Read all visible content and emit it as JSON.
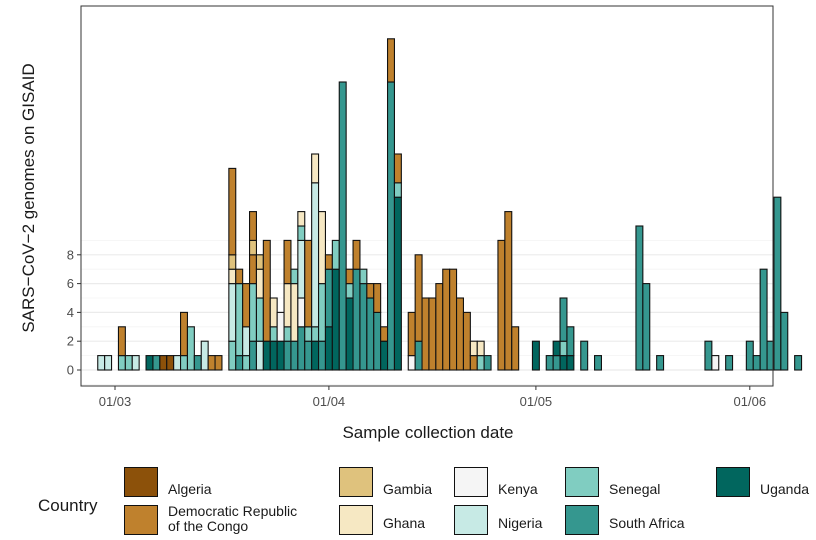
{
  "chart_data": {
    "type": "bar",
    "stacked": true,
    "xlabel": "Sample collection date",
    "ylabel": "SARS−CoV−2 genomes on GISAID",
    "xticks": [
      "01/03",
      "01/04",
      "01/05",
      "01/06"
    ],
    "yticks": [
      0,
      2,
      4,
      6,
      8
    ],
    "ylim": [
      0,
      24
    ],
    "grid": true,
    "legend_title": "Country",
    "legend_position": "bottom",
    "series": [
      {
        "name": "Algeria",
        "color": "#8c510a"
      },
      {
        "name": "Democratic Republic of the Congo",
        "color": "#bf812d"
      },
      {
        "name": "Gambia",
        "color": "#dfc27d"
      },
      {
        "name": "Ghana",
        "color": "#f6e8c3"
      },
      {
        "name": "Kenya",
        "color": "#f5f5f5"
      },
      {
        "name": "Nigeria",
        "color": "#c7eae5"
      },
      {
        "name": "Senegal",
        "color": "#80cdc1"
      },
      {
        "name": "South Africa",
        "color": "#35978f"
      },
      {
        "name": "Uganda",
        "color": "#01665e"
      }
    ],
    "bars": [
      {
        "date": "2020-02-28",
        "stack": [
          [
            "Nigeria",
            1
          ]
        ]
      },
      {
        "date": "2020-02-29",
        "stack": [
          [
            "Nigeria",
            1
          ]
        ]
      },
      {
        "date": "2020-03-02",
        "stack": [
          [
            "Senegal",
            1
          ],
          [
            "Democratic Republic of the Congo",
            2
          ]
        ]
      },
      {
        "date": "2020-03-03",
        "stack": [
          [
            "Senegal",
            1
          ]
        ]
      },
      {
        "date": "2020-03-04",
        "stack": [
          [
            "Nigeria",
            1
          ]
        ]
      },
      {
        "date": "2020-03-06",
        "stack": [
          [
            "Uganda",
            1
          ]
        ]
      },
      {
        "date": "2020-03-07",
        "stack": [
          [
            "South Africa",
            1
          ]
        ]
      },
      {
        "date": "2020-03-08",
        "stack": [
          [
            "Algeria",
            1
          ]
        ]
      },
      {
        "date": "2020-03-09",
        "stack": [
          [
            "Algeria",
            1
          ]
        ]
      },
      {
        "date": "2020-03-10",
        "stack": [
          [
            "Nigeria",
            1
          ]
        ]
      },
      {
        "date": "2020-03-11",
        "stack": [
          [
            "Senegal",
            1
          ],
          [
            "Democratic Republic of the Congo",
            3
          ]
        ]
      },
      {
        "date": "2020-03-12",
        "stack": [
          [
            "Senegal",
            3
          ]
        ]
      },
      {
        "date": "2020-03-13",
        "stack": [
          [
            "South Africa",
            1
          ]
        ]
      },
      {
        "date": "2020-03-14",
        "stack": [
          [
            "Nigeria",
            2
          ]
        ]
      },
      {
        "date": "2020-03-15",
        "stack": [
          [
            "Democratic Republic of the Congo",
            1
          ]
        ]
      },
      {
        "date": "2020-03-16",
        "stack": [
          [
            "Democratic Republic of the Congo",
            1
          ]
        ]
      },
      {
        "date": "2020-03-18",
        "stack": [
          [
            "Senegal",
            2
          ],
          [
            "Nigeria",
            4
          ],
          [
            "Ghana",
            1
          ],
          [
            "Gambia",
            1
          ],
          [
            "Democratic Republic of the Congo",
            6
          ]
        ]
      },
      {
        "date": "2020-03-19",
        "stack": [
          [
            "South Africa",
            1
          ],
          [
            "Senegal",
            5
          ],
          [
            "Democratic Republic of the Congo",
            1
          ]
        ]
      },
      {
        "date": "2020-03-20",
        "stack": [
          [
            "Senegal",
            1
          ],
          [
            "Nigeria",
            2
          ],
          [
            "Democratic Republic of the Congo",
            3
          ]
        ]
      },
      {
        "date": "2020-03-21",
        "stack": [
          [
            "South Africa",
            2
          ],
          [
            "Senegal",
            4
          ],
          [
            "Democratic Republic of the Congo",
            2
          ],
          [
            "Gambia",
            1
          ],
          [
            "Democratic Republic of the Congo",
            2
          ]
        ]
      },
      {
        "date": "2020-03-22",
        "stack": [
          [
            "Nigeria",
            2
          ],
          [
            "Senegal",
            3
          ],
          [
            "Ghana",
            2
          ],
          [
            "Gambia",
            1
          ]
        ]
      },
      {
        "date": "2020-03-23",
        "stack": [
          [
            "Uganda",
            2
          ],
          [
            "Democratic Republic of the Congo",
            7
          ]
        ]
      },
      {
        "date": "2020-03-24",
        "stack": [
          [
            "Uganda",
            2
          ],
          [
            "Senegal",
            1
          ],
          [
            "Ghana",
            2
          ]
        ]
      },
      {
        "date": "2020-03-25",
        "stack": [
          [
            "Uganda",
            2
          ],
          [
            "Kenya",
            2
          ]
        ]
      },
      {
        "date": "2020-03-26",
        "stack": [
          [
            "South Africa",
            2
          ],
          [
            "Senegal",
            1
          ],
          [
            "Ghana",
            3
          ],
          [
            "Democratic Republic of the Congo",
            3
          ]
        ]
      },
      {
        "date": "2020-03-27",
        "stack": [
          [
            "South Africa",
            2
          ],
          [
            "Ghana",
            4
          ],
          [
            "Senegal",
            1
          ]
        ]
      },
      {
        "date": "2020-03-28",
        "stack": [
          [
            "South Africa",
            3
          ],
          [
            "Kenya",
            2
          ],
          [
            "Nigeria",
            4
          ],
          [
            "Senegal",
            1
          ],
          [
            "Ghana",
            1
          ]
        ]
      },
      {
        "date": "2020-03-29",
        "stack": [
          [
            "South Africa",
            2
          ],
          [
            "Senegal",
            1
          ],
          [
            "Democratic Republic of the Congo",
            6
          ]
        ]
      },
      {
        "date": "2020-03-30",
        "stack": [
          [
            "Uganda",
            2
          ],
          [
            "Senegal",
            1
          ],
          [
            "Nigeria",
            10
          ],
          [
            "Ghana",
            2
          ]
        ]
      },
      {
        "date": "2020-03-31",
        "stack": [
          [
            "South Africa",
            2
          ],
          [
            "Senegal",
            4
          ],
          [
            "Ghana",
            5
          ]
        ]
      },
      {
        "date": "2020-04-01",
        "stack": [
          [
            "Uganda",
            3
          ],
          [
            "South Africa",
            4
          ],
          [
            "Democratic Republic of the Congo",
            1
          ]
        ]
      },
      {
        "date": "2020-04-02",
        "stack": [
          [
            "Uganda",
            7
          ],
          [
            "Senegal",
            2
          ]
        ]
      },
      {
        "date": "2020-04-03",
        "stack": [
          [
            "South Africa",
            20
          ]
        ]
      },
      {
        "date": "2020-04-04",
        "stack": [
          [
            "Uganda",
            5
          ],
          [
            "Senegal",
            1
          ],
          [
            "Democratic Republic of the Congo",
            1
          ]
        ]
      },
      {
        "date": "2020-04-05",
        "stack": [
          [
            "South Africa",
            7
          ],
          [
            "Democratic Republic of the Congo",
            2
          ]
        ]
      },
      {
        "date": "2020-04-06",
        "stack": [
          [
            "South Africa",
            6
          ],
          [
            "Senegal",
            1
          ]
        ]
      },
      {
        "date": "2020-04-07",
        "stack": [
          [
            "South Africa",
            5
          ],
          [
            "Democratic Republic of the Congo",
            1
          ]
        ]
      },
      {
        "date": "2020-04-08",
        "stack": [
          [
            "South Africa",
            4
          ],
          [
            "Democratic Republic of the Congo",
            2
          ]
        ]
      },
      {
        "date": "2020-04-09",
        "stack": [
          [
            "Uganda",
            2
          ],
          [
            "Democratic Republic of the Congo",
            1
          ]
        ]
      },
      {
        "date": "2020-04-10",
        "stack": [
          [
            "South Africa",
            20
          ],
          [
            "Democratic Republic of the Congo",
            3
          ]
        ]
      },
      {
        "date": "2020-04-11",
        "stack": [
          [
            "Uganda",
            12
          ],
          [
            "Senegal",
            1
          ],
          [
            "Democratic Republic of the Congo",
            2
          ]
        ]
      },
      {
        "date": "2020-04-13",
        "stack": [
          [
            "Kenya",
            1
          ],
          [
            "Democratic Republic of the Congo",
            3
          ]
        ]
      },
      {
        "date": "2020-04-14",
        "stack": [
          [
            "South Africa",
            2
          ],
          [
            "Democratic Republic of the Congo",
            6
          ]
        ]
      },
      {
        "date": "2020-04-15",
        "stack": [
          [
            "Democratic Republic of the Congo",
            5
          ]
        ]
      },
      {
        "date": "2020-04-16",
        "stack": [
          [
            "Democratic Republic of the Congo",
            5
          ]
        ]
      },
      {
        "date": "2020-04-17",
        "stack": [
          [
            "Democratic Republic of the Congo",
            6
          ]
        ]
      },
      {
        "date": "2020-04-18",
        "stack": [
          [
            "Democratic Republic of the Congo",
            7
          ]
        ]
      },
      {
        "date": "2020-04-19",
        "stack": [
          [
            "Democratic Republic of the Congo",
            7
          ]
        ]
      },
      {
        "date": "2020-04-20",
        "stack": [
          [
            "Democratic Republic of the Congo",
            5
          ]
        ]
      },
      {
        "date": "2020-04-21",
        "stack": [
          [
            "Democratic Republic of the Congo",
            4
          ]
        ]
      },
      {
        "date": "2020-04-22",
        "stack": [
          [
            "Democratic Republic of the Congo",
            1
          ],
          [
            "Ghana",
            1
          ]
        ]
      },
      {
        "date": "2020-04-23",
        "stack": [
          [
            "Senegal",
            1
          ],
          [
            "Ghana",
            1
          ]
        ]
      },
      {
        "date": "2020-04-24",
        "stack": [
          [
            "South Africa",
            1
          ]
        ]
      },
      {
        "date": "2020-04-26",
        "stack": [
          [
            "Democratic Republic of the Congo",
            9
          ]
        ]
      },
      {
        "date": "2020-04-27",
        "stack": [
          [
            "Democratic Republic of the Congo",
            11
          ]
        ]
      },
      {
        "date": "2020-04-28",
        "stack": [
          [
            "Democratic Republic of the Congo",
            3
          ]
        ]
      },
      {
        "date": "2020-05-01",
        "stack": [
          [
            "Uganda",
            2
          ]
        ]
      },
      {
        "date": "2020-05-03",
        "stack": [
          [
            "South Africa",
            1
          ]
        ]
      },
      {
        "date": "2020-05-04",
        "stack": [
          [
            "South Africa",
            1
          ],
          [
            "Uganda",
            1
          ]
        ]
      },
      {
        "date": "2020-05-05",
        "stack": [
          [
            "Uganda",
            1
          ],
          [
            "Senegal",
            1
          ],
          [
            "South Africa",
            3
          ]
        ]
      },
      {
        "date": "2020-05-06",
        "stack": [
          [
            "Uganda",
            1
          ],
          [
            "South Africa",
            2
          ]
        ]
      },
      {
        "date": "2020-05-08",
        "stack": [
          [
            "South Africa",
            2
          ]
        ]
      },
      {
        "date": "2020-05-10",
        "stack": [
          [
            "South Africa",
            1
          ]
        ]
      },
      {
        "date": "2020-05-16",
        "stack": [
          [
            "South Africa",
            10
          ]
        ]
      },
      {
        "date": "2020-05-17",
        "stack": [
          [
            "South Africa",
            6
          ]
        ]
      },
      {
        "date": "2020-05-19",
        "stack": [
          [
            "South Africa",
            1
          ]
        ]
      },
      {
        "date": "2020-05-26",
        "stack": [
          [
            "South Africa",
            2
          ]
        ]
      },
      {
        "date": "2020-05-27",
        "stack": [
          [
            "Kenya",
            1
          ]
        ]
      },
      {
        "date": "2020-05-29",
        "stack": [
          [
            "South Africa",
            1
          ]
        ]
      },
      {
        "date": "2020-06-01",
        "stack": [
          [
            "South Africa",
            2
          ]
        ]
      },
      {
        "date": "2020-06-02",
        "stack": [
          [
            "South Africa",
            1
          ]
        ]
      },
      {
        "date": "2020-06-03",
        "stack": [
          [
            "South Africa",
            7
          ]
        ]
      },
      {
        "date": "2020-06-04",
        "stack": [
          [
            "South Africa",
            2
          ]
        ]
      },
      {
        "date": "2020-06-05",
        "stack": [
          [
            "South Africa",
            12
          ]
        ]
      },
      {
        "date": "2020-06-06",
        "stack": [
          [
            "South Africa",
            4
          ]
        ]
      },
      {
        "date": "2020-06-08",
        "stack": [
          [
            "South Africa",
            1
          ]
        ]
      }
    ]
  },
  "legend": {
    "title": "Country",
    "items": [
      "Algeria",
      "Democratic Republic\nof the Congo",
      "Gambia",
      "Ghana",
      "Kenya",
      "Nigeria",
      "Senegal",
      "South Africa",
      "Uganda"
    ]
  }
}
